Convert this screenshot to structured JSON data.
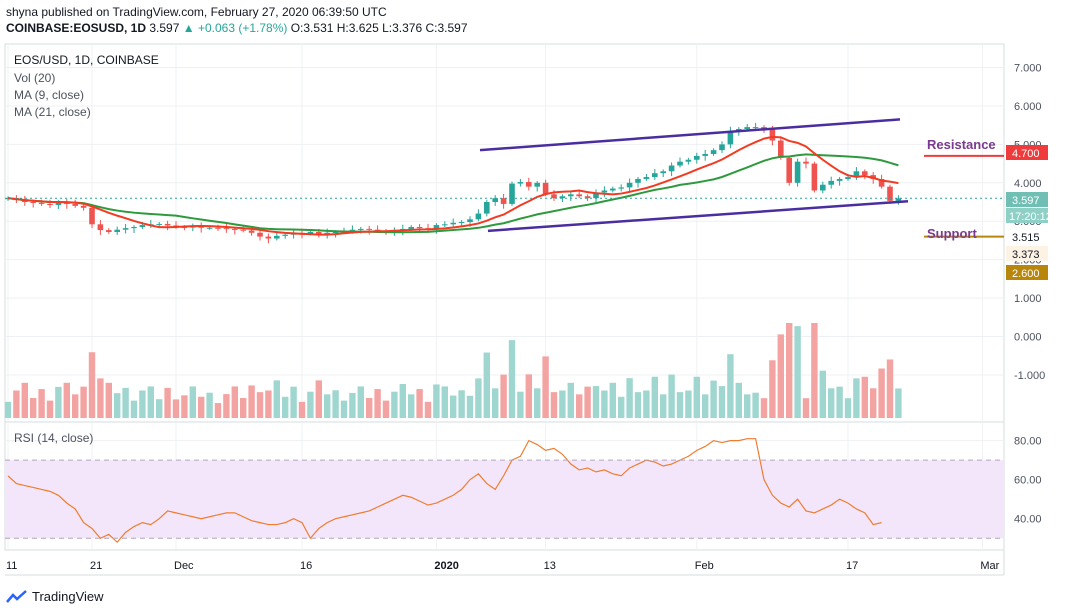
{
  "header": {
    "publisher_line": "shyna published on TradingView.com, February 27, 2020 06:39:50 UTC",
    "symbol_line": "COINBASE:EOSUSD, 1D",
    "last": "3.597",
    "change": "+0.063 (+1.78%)",
    "ohlc": "O:3.531 H:3.625 L:3.376 C:3.597"
  },
  "legend": {
    "title": "EOS/USD, 1D, COINBASE",
    "vol": "Vol (20)",
    "ma9": "MA (9, close)",
    "ma21": "MA (21, close)",
    "rsi": "RSI (14, close)"
  },
  "annotations": {
    "resistance": "Resistance",
    "support": "Support"
  },
  "price_tags": {
    "resistance_value": "4.700",
    "current_price": "3.597",
    "countdown": "17:20:12",
    "ma_value_1": "3.515",
    "ma_value_2": "3.373",
    "support_value": "2.600"
  },
  "footer": {
    "brand": "TradingView"
  },
  "colors": {
    "up": "#26a69a",
    "down": "#ef5350",
    "ma9": "#f23b22",
    "ma21": "#2e9a3d",
    "channel": "#4a2ea0",
    "rsi_line": "#f07d2f",
    "rsi_band": "#f3e6fb",
    "resistance": "#7b3a8f",
    "support": "#b8860b"
  },
  "chart_data": [
    {
      "type": "candlestick",
      "title": "EOS/USD, 1D, COINBASE",
      "y_axis_ticks": [
        "7.000",
        "6.000",
        "5.000",
        "4.000",
        "3.000",
        "2.000",
        "1.000",
        "0.000",
        "-1.000"
      ],
      "ylim": [
        -1.6,
        7.3
      ],
      "x_tick_labels": [
        "11",
        "21",
        "Dec",
        "16",
        "2020",
        "13",
        "Feb",
        "17",
        "Mar"
      ],
      "x_tick_days": [
        0,
        10,
        20,
        35,
        51,
        64,
        82,
        100,
        116
      ],
      "candles_close": [
        3.6,
        3.55,
        3.5,
        3.48,
        3.45,
        3.42,
        3.5,
        3.45,
        3.4,
        3.35,
        2.92,
        2.77,
        2.72,
        2.78,
        2.82,
        2.85,
        2.9,
        2.92,
        2.93,
        2.89,
        2.85,
        2.84,
        2.86,
        2.83,
        2.83,
        2.82,
        2.8,
        2.78,
        2.76,
        2.7,
        2.6,
        2.55,
        2.62,
        2.65,
        2.7,
        2.68,
        2.72,
        2.65,
        2.7,
        2.72,
        2.75,
        2.78,
        2.8,
        2.78,
        2.75,
        2.72,
        2.76,
        2.8,
        2.85,
        2.82,
        2.8,
        2.9,
        2.92,
        2.96,
        2.98,
        3.05,
        3.2,
        3.5,
        3.6,
        3.45,
        3.98,
        4.02,
        3.9,
        4.0,
        3.7,
        3.6,
        3.65,
        3.7,
        3.65,
        3.6,
        3.75,
        3.8,
        3.85,
        3.88,
        4.0,
        4.1,
        4.15,
        4.25,
        4.3,
        4.45,
        4.55,
        4.6,
        4.7,
        4.75,
        4.85,
        5.0,
        5.35,
        5.4,
        5.45,
        5.45,
        5.4,
        5.1,
        4.65,
        4.0,
        4.55,
        4.5,
        3.8,
        3.95,
        4.05,
        4.1,
        4.15,
        4.3,
        4.2,
        4.1,
        3.9,
        3.53,
        3.597
      ],
      "annotated_levels": {
        "resistance": 4.7,
        "support": 2.6,
        "last": 3.597
      },
      "last_values": {
        "ma9": 3.515,
        "ma21": 3.373
      },
      "series": [
        {
          "name": "MA (9, close)"
        },
        {
          "name": "MA (21, close)"
        },
        {
          "name": "Vol (20)"
        }
      ]
    },
    {
      "type": "line",
      "title": "RSI (14, close)",
      "y_axis_ticks": [
        "80.00",
        "60.00",
        "40.00"
      ],
      "ylim": [
        25,
        88
      ],
      "band": [
        30,
        70
      ],
      "values": [
        62,
        58,
        57,
        56,
        55,
        54,
        52,
        48,
        45,
        38,
        35,
        30,
        32,
        28,
        33,
        36,
        38,
        37,
        40,
        44,
        43,
        42,
        41,
        40,
        41,
        42,
        43,
        43,
        41,
        39,
        38,
        37,
        37,
        38,
        40,
        38,
        30,
        35,
        38,
        40,
        41,
        42,
        43,
        44,
        46,
        48,
        50,
        52,
        51,
        49,
        47,
        48,
        50,
        52,
        55,
        60,
        63,
        58,
        55,
        62,
        70,
        72,
        80,
        78,
        75,
        76,
        73,
        68,
        65,
        66,
        64,
        65,
        63,
        62,
        66,
        68,
        70,
        69,
        67,
        68,
        70,
        72,
        75,
        77,
        80,
        79,
        80,
        80,
        81,
        81,
        60,
        52,
        48,
        46,
        50,
        44,
        43,
        45,
        47,
        50,
        48,
        45,
        43,
        37,
        38
      ]
    }
  ]
}
